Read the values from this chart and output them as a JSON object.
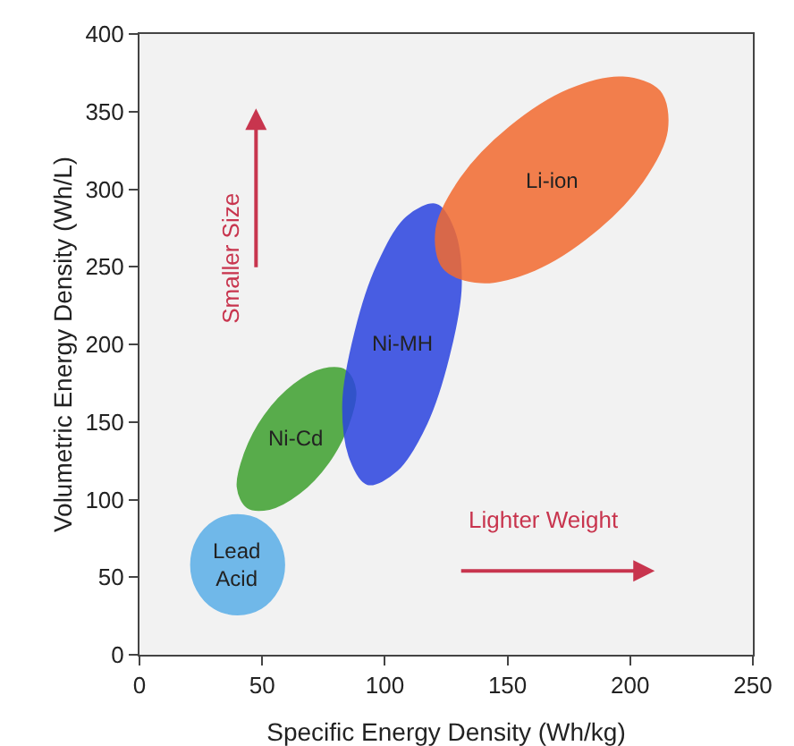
{
  "chart_data": {
    "type": "area",
    "xlabel": "Specific Energy Density (Wh/kg)",
    "ylabel": "Volumetric Energy Density (Wh/L)",
    "xlim": [
      0,
      250
    ],
    "xticks": [
      0,
      50,
      100,
      150,
      200,
      250
    ],
    "ylim": [
      0,
      400
    ],
    "yticks": [
      0,
      50,
      100,
      150,
      200,
      250,
      300,
      350,
      400
    ],
    "grid": false,
    "legend": false,
    "annotations": [
      "Smaller Size",
      "Lighter Weight"
    ],
    "series": [
      {
        "name": "Lead Acid",
        "color": "#5aaee8",
        "x": [
          59,
          56.5,
          49.5,
          40,
          30.5,
          23.5,
          21,
          23.5,
          30.5,
          40,
          49.5,
          56.5,
          59
        ],
        "values": [
          58,
          74,
          86,
          90,
          86,
          74,
          58,
          42,
          30,
          26,
          30,
          42,
          58
        ]
      },
      {
        "name": "Ni-Cd",
        "color": "#3ea02e",
        "x": [
          84,
          88,
          85,
          77,
          65,
          53,
          44,
          40,
          43,
          51,
          63,
          75,
          84
        ],
        "values": [
          183,
          170,
          148,
          124,
          104,
          94,
          95,
          108,
          130,
          154,
          174,
          184,
          183
        ]
      },
      {
        "name": "Ni-MH",
        "color": "#2b44e0",
        "x": [
          121,
          128,
          131,
          126,
          117,
          105,
          93,
          86,
          83,
          88,
          97,
          109,
          121
        ],
        "values": [
          290,
          274,
          238,
          192,
          149,
          119,
          110,
          126,
          162,
          208,
          251,
          282,
          290
        ]
      },
      {
        "name": "Li-ion",
        "color": "#f26a30",
        "x": [
          212,
          215,
          205,
          185,
          161,
          139,
          124,
          121,
          131,
          151,
          175,
          197,
          212
        ],
        "values": [
          363,
          338,
          305,
          272,
          248,
          240,
          249,
          274,
          307,
          340,
          364,
          372,
          363
        ]
      }
    ]
  }
}
